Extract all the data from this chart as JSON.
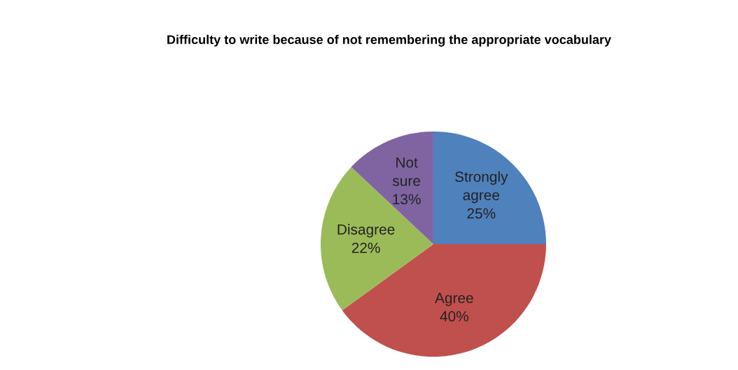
{
  "chart_data": {
    "type": "pie",
    "title": "Difficulty to write because of not remembering the appropriate vocabulary",
    "categories": [
      "Strongly agree",
      "Agree",
      "Disagree",
      "Not sure"
    ],
    "values": [
      25,
      40,
      22,
      13
    ],
    "value_labels": [
      "25%",
      "40%",
      "22%",
      "13%"
    ],
    "colors": [
      "#4f81bd",
      "#c0504d",
      "#9bbb59",
      "#8064a2"
    ],
    "legend": false
  }
}
